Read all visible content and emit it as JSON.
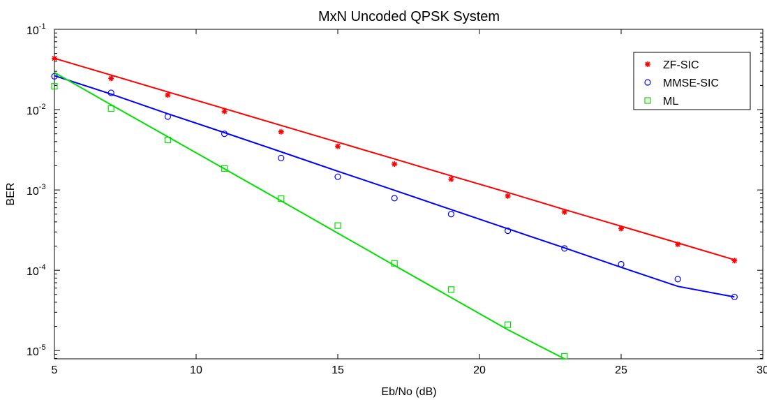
{
  "chart_data": {
    "type": "line",
    "title": "MxN Uncoded QPSK System",
    "xlabel": "Eb/No (dB)",
    "ylabel": "BER",
    "xlim": [
      5,
      30
    ],
    "ylim": [
      7.9e-06,
      0.1
    ],
    "yscale": "log",
    "grid": false,
    "legend_position": "top-right",
    "x_ticks": [
      "5",
      "10",
      "15",
      "20",
      "25",
      "30"
    ],
    "y_ticks": [
      {
        "value": 0.1,
        "base": "10",
        "exp": "-1"
      },
      {
        "value": 0.01,
        "base": "10",
        "exp": "-2"
      },
      {
        "value": 0.001,
        "base": "10",
        "exp": "-3"
      },
      {
        "value": 0.0001,
        "base": "10",
        "exp": "-4"
      },
      {
        "value": 1e-05,
        "base": "10",
        "exp": "-5"
      }
    ],
    "series": [
      {
        "name": "ZF-SIC",
        "color": "#ff0000",
        "marker": "asterisk",
        "x": [
          5,
          7,
          9,
          11,
          13,
          15,
          17,
          19,
          21,
          23,
          25,
          27,
          29
        ],
        "markers": [
          0.0435,
          0.0245,
          0.0152,
          0.0095,
          0.0053,
          0.0035,
          0.0021,
          0.00136,
          0.00084,
          0.00053,
          0.00033,
          0.00021,
          0.000132
        ],
        "fit": [
          0.0435,
          0.0269,
          0.0166,
          0.0103,
          0.00636,
          0.00393,
          0.00243,
          0.0015,
          0.00093,
          0.00057,
          0.000354,
          0.000219,
          0.000135
        ]
      },
      {
        "name": "MMSE-SIC",
        "color": "#0000ff",
        "marker": "circle",
        "x": [
          5,
          7,
          9,
          11,
          13,
          15,
          17,
          19,
          21,
          23,
          25,
          27,
          29
        ],
        "markers": [
          0.026,
          0.0162,
          0.0082,
          0.005,
          0.0025,
          0.00146,
          0.00079,
          0.0005,
          0.00031,
          0.000187,
          0.000119,
          7.75e-05,
          4.65e-05
        ],
        "fit": [
          0.0265,
          0.0156,
          0.00889,
          0.00517,
          0.00298,
          0.00171,
          0.00099,
          0.00057,
          0.000329,
          0.00019,
          0.000109,
          6.31e-05,
          4.65e-05
        ]
      },
      {
        "name": "ML",
        "color": "#00e000",
        "marker": "square",
        "x": [
          5,
          7,
          9,
          11,
          13,
          15,
          17,
          19,
          21,
          23
        ],
        "markers": [
          0.0195,
          0.0103,
          0.0042,
          0.00185,
          0.00078,
          0.00036,
          0.000122,
          5.75e-05,
          2.1e-05,
          8.5e-06
        ],
        "fit": [
          0.029,
          0.0115,
          0.0046,
          0.00183,
          0.00073,
          0.00029,
          0.000115,
          4.58e-05,
          1.82e-05,
          7.9e-06
        ]
      }
    ]
  }
}
